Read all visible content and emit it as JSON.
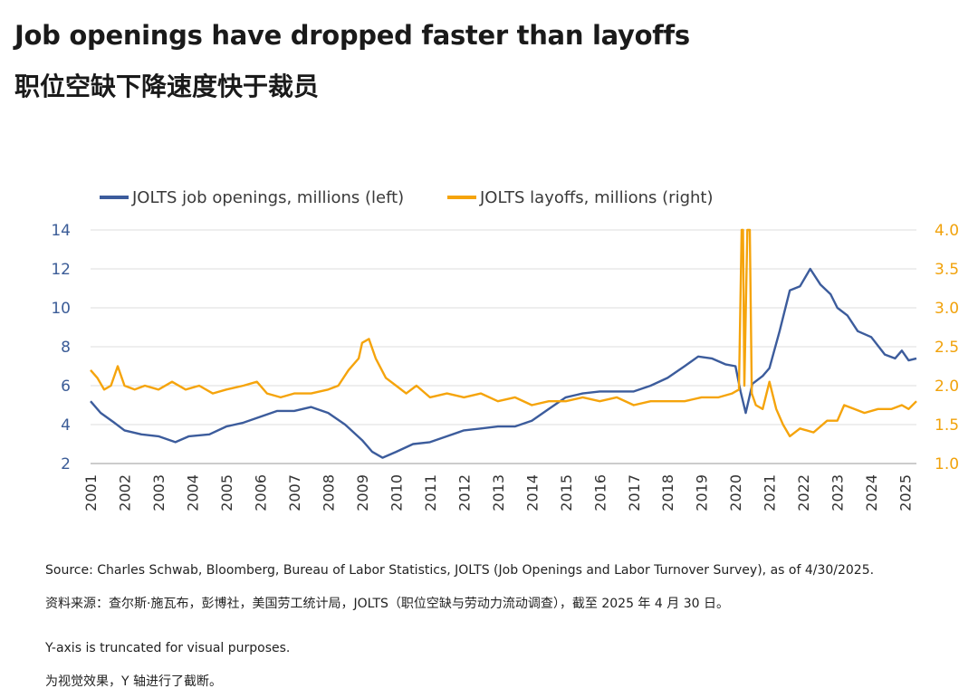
{
  "title_en": "Job openings have dropped faster than layoffs",
  "title_zh": "职位空缺下降速度快于裁员",
  "colors": {
    "openings": "#3c5c9c",
    "layoffs": "#f5a40c",
    "grid": "#dcdcdc"
  },
  "chart_data": {
    "type": "line",
    "dual_axis": true,
    "x_range": [
      2001.0,
      2025.33
    ],
    "x_tick_labels": [
      "2001",
      "2002",
      "2003",
      "2004",
      "2005",
      "2006",
      "2007",
      "2008",
      "2009",
      "2010",
      "2011",
      "2012",
      "2013",
      "2014",
      "2015",
      "2016",
      "2017",
      "2018",
      "2019",
      "2020",
      "2021",
      "2022",
      "2023",
      "2024",
      "2025"
    ],
    "left_axis": {
      "range": [
        2,
        14
      ],
      "ticks": [
        "2",
        "4",
        "6",
        "8",
        "10",
        "12",
        "14"
      ]
    },
    "right_axis": {
      "range": [
        1.0,
        4.0
      ],
      "ticks": [
        "1.0",
        "1.5",
        "2.0",
        "2.5",
        "3.0",
        "3.5",
        "4.0"
      ]
    },
    "grid": true,
    "legend_position": "top",
    "series": [
      {
        "name": "JOLTS job openings, millions (left)",
        "axis": "left",
        "points": [
          [
            2001.0,
            5.2
          ],
          [
            2001.3,
            4.6
          ],
          [
            2001.7,
            4.1
          ],
          [
            2002.0,
            3.7
          ],
          [
            2002.5,
            3.5
          ],
          [
            2003.0,
            3.4
          ],
          [
            2003.5,
            3.1
          ],
          [
            2003.9,
            3.4
          ],
          [
            2004.5,
            3.5
          ],
          [
            2005.0,
            3.9
          ],
          [
            2005.5,
            4.1
          ],
          [
            2006.0,
            4.4
          ],
          [
            2006.5,
            4.7
          ],
          [
            2007.0,
            4.7
          ],
          [
            2007.5,
            4.9
          ],
          [
            2008.0,
            4.6
          ],
          [
            2008.5,
            4.0
          ],
          [
            2009.0,
            3.2
          ],
          [
            2009.3,
            2.6
          ],
          [
            2009.6,
            2.3
          ],
          [
            2010.0,
            2.6
          ],
          [
            2010.5,
            3.0
          ],
          [
            2011.0,
            3.1
          ],
          [
            2011.5,
            3.4
          ],
          [
            2012.0,
            3.7
          ],
          [
            2012.5,
            3.8
          ],
          [
            2013.0,
            3.9
          ],
          [
            2013.5,
            3.9
          ],
          [
            2014.0,
            4.2
          ],
          [
            2014.5,
            4.8
          ],
          [
            2015.0,
            5.4
          ],
          [
            2015.5,
            5.6
          ],
          [
            2016.0,
            5.7
          ],
          [
            2016.5,
            5.7
          ],
          [
            2017.0,
            5.7
          ],
          [
            2017.5,
            6.0
          ],
          [
            2018.0,
            6.4
          ],
          [
            2018.5,
            7.0
          ],
          [
            2018.9,
            7.5
          ],
          [
            2019.3,
            7.4
          ],
          [
            2019.7,
            7.1
          ],
          [
            2020.0,
            7.0
          ],
          [
            2020.15,
            5.7
          ],
          [
            2020.3,
            4.6
          ],
          [
            2020.5,
            6.1
          ],
          [
            2020.8,
            6.5
          ],
          [
            2021.0,
            6.9
          ],
          [
            2021.3,
            8.8
          ],
          [
            2021.6,
            10.9
          ],
          [
            2021.9,
            11.1
          ],
          [
            2022.2,
            12.0
          ],
          [
            2022.5,
            11.2
          ],
          [
            2022.8,
            10.7
          ],
          [
            2023.0,
            10.0
          ],
          [
            2023.3,
            9.6
          ],
          [
            2023.6,
            8.8
          ],
          [
            2024.0,
            8.5
          ],
          [
            2024.4,
            7.6
          ],
          [
            2024.7,
            7.4
          ],
          [
            2024.9,
            7.8
          ],
          [
            2025.1,
            7.3
          ],
          [
            2025.33,
            7.4
          ]
        ]
      },
      {
        "name": "JOLTS layoffs, millions (right)",
        "axis": "right",
        "points": [
          [
            2001.0,
            2.2
          ],
          [
            2001.2,
            2.1
          ],
          [
            2001.4,
            1.95
          ],
          [
            2001.6,
            2.0
          ],
          [
            2001.8,
            2.25
          ],
          [
            2002.0,
            2.0
          ],
          [
            2002.3,
            1.95
          ],
          [
            2002.6,
            2.0
          ],
          [
            2003.0,
            1.95
          ],
          [
            2003.4,
            2.05
          ],
          [
            2003.8,
            1.95
          ],
          [
            2004.2,
            2.0
          ],
          [
            2004.6,
            1.9
          ],
          [
            2005.0,
            1.95
          ],
          [
            2005.5,
            2.0
          ],
          [
            2005.9,
            2.05
          ],
          [
            2006.2,
            1.9
          ],
          [
            2006.6,
            1.85
          ],
          [
            2007.0,
            1.9
          ],
          [
            2007.5,
            1.9
          ],
          [
            2008.0,
            1.95
          ],
          [
            2008.3,
            2.0
          ],
          [
            2008.6,
            2.2
          ],
          [
            2008.9,
            2.35
          ],
          [
            2009.0,
            2.55
          ],
          [
            2009.2,
            2.6
          ],
          [
            2009.4,
            2.35
          ],
          [
            2009.7,
            2.1
          ],
          [
            2010.0,
            2.0
          ],
          [
            2010.3,
            1.9
          ],
          [
            2010.6,
            2.0
          ],
          [
            2011.0,
            1.85
          ],
          [
            2011.5,
            1.9
          ],
          [
            2012.0,
            1.85
          ],
          [
            2012.5,
            1.9
          ],
          [
            2013.0,
            1.8
          ],
          [
            2013.5,
            1.85
          ],
          [
            2014.0,
            1.75
          ],
          [
            2014.5,
            1.8
          ],
          [
            2015.0,
            1.8
          ],
          [
            2015.5,
            1.85
          ],
          [
            2016.0,
            1.8
          ],
          [
            2016.5,
            1.85
          ],
          [
            2017.0,
            1.75
          ],
          [
            2017.5,
            1.8
          ],
          [
            2018.0,
            1.8
          ],
          [
            2018.5,
            1.8
          ],
          [
            2019.0,
            1.85
          ],
          [
            2019.5,
            1.85
          ],
          [
            2019.9,
            1.9
          ],
          [
            2020.1,
            1.95
          ],
          [
            2020.18,
            4.0
          ],
          [
            2020.22,
            4.0
          ],
          [
            2020.26,
            2.0
          ],
          [
            2020.35,
            4.0
          ],
          [
            2020.42,
            4.0
          ],
          [
            2020.48,
            1.9
          ],
          [
            2020.6,
            1.75
          ],
          [
            2020.8,
            1.7
          ],
          [
            2021.0,
            2.05
          ],
          [
            2021.2,
            1.7
          ],
          [
            2021.4,
            1.5
          ],
          [
            2021.6,
            1.35
          ],
          [
            2021.9,
            1.45
          ],
          [
            2022.3,
            1.4
          ],
          [
            2022.7,
            1.55
          ],
          [
            2023.0,
            1.55
          ],
          [
            2023.2,
            1.75
          ],
          [
            2023.5,
            1.7
          ],
          [
            2023.8,
            1.65
          ],
          [
            2024.2,
            1.7
          ],
          [
            2024.6,
            1.7
          ],
          [
            2024.9,
            1.75
          ],
          [
            2025.1,
            1.7
          ],
          [
            2025.33,
            1.8
          ]
        ]
      }
    ]
  },
  "notes": {
    "source_en": "Source: Charles Schwab, Bloomberg, Bureau of Labor Statistics, JOLTS (Job Openings and Labor Turnover Survey), as of 4/30/2025.",
    "source_zh": "资料来源：查尔斯·施瓦布，彭博社，美国劳工统计局，JOLTS（职位空缺与劳动力流动调查），截至 2025 年 4 月 30 日。",
    "axis_en": "Y-axis is truncated for visual purposes.",
    "axis_zh": "为视觉效果，Y 轴进行了截断。"
  }
}
